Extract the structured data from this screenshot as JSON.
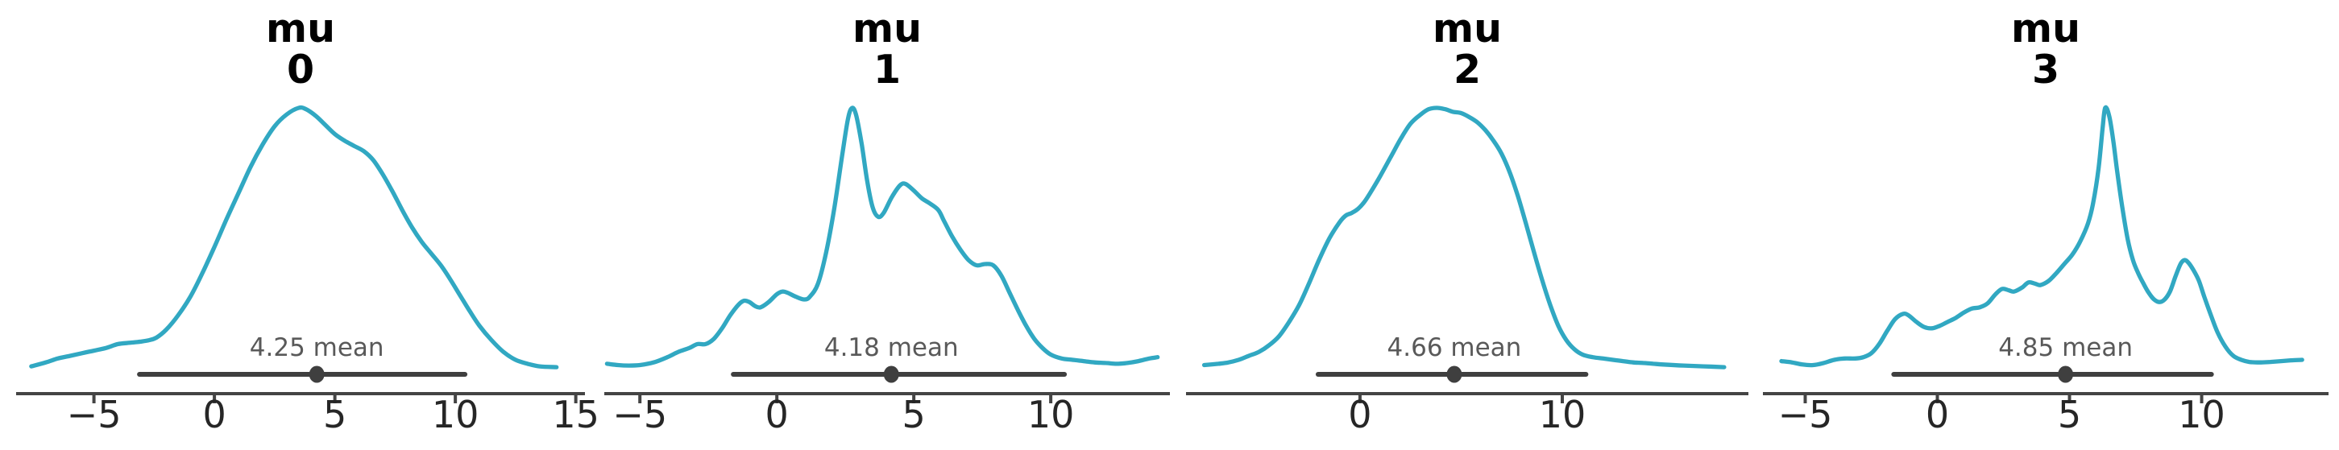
{
  "figure": {
    "background": "#ffffff",
    "curve_color": "#31a8c2",
    "hdi_color": "#3f3f3f",
    "mean_text_color": "#595959",
    "tick_label_color": "#262626",
    "axis_color": "#444444",
    "title_color": "#000000"
  },
  "chart_data": [
    {
      "type": "line",
      "title": "mu 0",
      "title_lines": [
        "mu",
        "0"
      ],
      "mean": 4.25,
      "mean_label": "4.25 mean",
      "hdi": [
        -3.11,
        10.4
      ],
      "x_range": [
        -8.23,
        15.38
      ],
      "x_ticks": [
        -5,
        0,
        5,
        10,
        15
      ],
      "x_tick_labels": [
        "−5",
        "0",
        "5",
        "10",
        "15"
      ],
      "x": [
        -7.6,
        -7,
        -6.5,
        -6,
        -5.5,
        -5,
        -4.5,
        -4,
        -3.5,
        -3,
        -2.7,
        -2.4,
        -2,
        -1.5,
        -1,
        -0.5,
        0,
        0.5,
        1,
        1.5,
        2,
        2.5,
        3,
        3.5,
        3.8,
        4.2,
        4.6,
        5,
        5.4,
        5.8,
        6.2,
        6.6,
        7,
        7.4,
        7.8,
        8.2,
        8.6,
        9,
        9.4,
        9.8,
        10.2,
        10.6,
        11,
        11.5,
        12,
        12.5,
        13,
        13.5,
        14.2
      ],
      "density": [
        0.015,
        0.03,
        0.045,
        0.055,
        0.065,
        0.075,
        0.085,
        0.1,
        0.105,
        0.11,
        0.115,
        0.125,
        0.155,
        0.21,
        0.28,
        0.37,
        0.47,
        0.575,
        0.675,
        0.775,
        0.86,
        0.93,
        0.975,
        1.0,
        0.995,
        0.97,
        0.935,
        0.9,
        0.875,
        0.855,
        0.835,
        0.8,
        0.745,
        0.68,
        0.61,
        0.545,
        0.49,
        0.445,
        0.4,
        0.345,
        0.285,
        0.225,
        0.17,
        0.115,
        0.07,
        0.04,
        0.025,
        0.015,
        0.012
      ]
    },
    {
      "type": "line",
      "title": "mu 1",
      "title_lines": [
        "mu",
        "1"
      ],
      "mean": 4.18,
      "mean_label": "4.18 mean",
      "hdi": [
        -1.59,
        10.5
      ],
      "x_range": [
        -6.3,
        14.35
      ],
      "x_ticks": [
        -5,
        0,
        5,
        10
      ],
      "x_tick_labels": [
        "−5",
        "0",
        "5",
        "10"
      ],
      "x": [
        -6.2,
        -5.8,
        -5.4,
        -5,
        -4.5,
        -4,
        -3.6,
        -3.2,
        -2.9,
        -2.6,
        -2.3,
        -2,
        -1.7,
        -1.4,
        -1.2,
        -1,
        -0.8,
        -0.6,
        -0.3,
        0,
        0.2,
        0.4,
        0.7,
        1,
        1.2,
        1.5,
        1.8,
        2.1,
        2.4,
        2.6,
        2.75,
        2.9,
        3.1,
        3.3,
        3.5,
        3.7,
        3.9,
        4.2,
        4.5,
        4.7,
        5,
        5.3,
        5.6,
        5.9,
        6.1,
        6.4,
        6.7,
        7,
        7.3,
        7.6,
        7.9,
        8.2,
        8.5,
        8.8,
        9.1,
        9.4,
        9.7,
        10,
        10.4,
        10.8,
        11.2,
        11.6,
        12,
        12.4,
        12.8,
        13.2,
        13.6,
        13.9
      ],
      "density": [
        0.025,
        0.02,
        0.018,
        0.02,
        0.03,
        0.05,
        0.07,
        0.085,
        0.1,
        0.1,
        0.12,
        0.16,
        0.21,
        0.25,
        0.265,
        0.26,
        0.245,
        0.24,
        0.26,
        0.29,
        0.3,
        0.295,
        0.28,
        0.27,
        0.28,
        0.33,
        0.45,
        0.62,
        0.83,
        0.96,
        1.0,
        0.97,
        0.86,
        0.72,
        0.62,
        0.585,
        0.6,
        0.66,
        0.705,
        0.71,
        0.685,
        0.655,
        0.635,
        0.61,
        0.57,
        0.51,
        0.46,
        0.42,
        0.4,
        0.405,
        0.4,
        0.36,
        0.295,
        0.23,
        0.17,
        0.12,
        0.085,
        0.06,
        0.045,
        0.04,
        0.035,
        0.03,
        0.028,
        0.025,
        0.028,
        0.035,
        0.045,
        0.05
      ]
    },
    {
      "type": "line",
      "title": "mu 2",
      "title_lines": [
        "mu",
        "2"
      ],
      "mean": 4.66,
      "mean_label": "4.66 mean",
      "hdi": [
        -2.07,
        11.17
      ],
      "x_range": [
        -8.6,
        19.2
      ],
      "x_ticks": [
        0,
        10
      ],
      "x_tick_labels": [
        "0",
        "10"
      ],
      "x": [
        -7.7,
        -7,
        -6.5,
        -6,
        -5.5,
        -5,
        -4.5,
        -4,
        -3.5,
        -3,
        -2.5,
        -2,
        -1.5,
        -1,
        -0.7,
        -0.4,
        -0.1,
        0.2,
        0.5,
        1,
        1.5,
        2,
        2.5,
        3,
        3.4,
        3.8,
        4.2,
        4.6,
        5,
        5.4,
        5.8,
        6.2,
        6.6,
        7,
        7.4,
        7.8,
        8.2,
        8.6,
        9,
        9.4,
        9.8,
        10.2,
        10.6,
        11,
        11.5,
        12,
        12.5,
        13,
        13.5,
        14,
        14.5,
        15,
        16,
        17,
        18
      ],
      "density": [
        0.02,
        0.025,
        0.03,
        0.04,
        0.055,
        0.07,
        0.095,
        0.13,
        0.185,
        0.25,
        0.335,
        0.425,
        0.505,
        0.565,
        0.59,
        0.6,
        0.615,
        0.64,
        0.675,
        0.74,
        0.81,
        0.88,
        0.94,
        0.975,
        0.995,
        1.0,
        0.995,
        0.985,
        0.98,
        0.965,
        0.945,
        0.915,
        0.875,
        0.825,
        0.755,
        0.665,
        0.56,
        0.45,
        0.345,
        0.25,
        0.17,
        0.115,
        0.08,
        0.06,
        0.05,
        0.045,
        0.04,
        0.035,
        0.03,
        0.028,
        0.025,
        0.022,
        0.018,
        0.015,
        0.012
      ]
    },
    {
      "type": "line",
      "title": "mu 3",
      "title_lines": [
        "mu",
        "3"
      ],
      "mean": 4.85,
      "mean_label": "4.85 mean",
      "hdi": [
        -1.65,
        10.37
      ],
      "x_range": [
        -6.6,
        14.8
      ],
      "x_ticks": [
        -5,
        0,
        5,
        10
      ],
      "x_tick_labels": [
        "−5",
        "0",
        "5",
        "10"
      ],
      "x": [
        -5.9,
        -5.5,
        -5.1,
        -4.7,
        -4.3,
        -3.9,
        -3.5,
        -3.1,
        -2.8,
        -2.5,
        -2.2,
        -1.9,
        -1.6,
        -1.3,
        -1.1,
        -0.8,
        -0.5,
        -0.2,
        0.1,
        0.4,
        0.7,
        1,
        1.3,
        1.6,
        1.9,
        2.2,
        2.45,
        2.7,
        2.9,
        3.2,
        3.45,
        3.7,
        3.9,
        4.2,
        4.5,
        4.8,
        5.1,
        5.4,
        5.7,
        5.9,
        6.1,
        6.25,
        6.35,
        6.5,
        6.65,
        6.8,
        7,
        7.2,
        7.4,
        7.6,
        7.8,
        8,
        8.2,
        8.4,
        8.6,
        8.8,
        9,
        9.2,
        9.35,
        9.5,
        9.7,
        9.9,
        10.1,
        10.35,
        10.6,
        10.9,
        11.2,
        11.5,
        11.8,
        12.2,
        12.6,
        13,
        13.4,
        13.8
      ],
      "density": [
        0.035,
        0.03,
        0.022,
        0.02,
        0.028,
        0.04,
        0.045,
        0.045,
        0.05,
        0.065,
        0.1,
        0.15,
        0.195,
        0.215,
        0.21,
        0.185,
        0.165,
        0.16,
        0.17,
        0.185,
        0.2,
        0.22,
        0.235,
        0.24,
        0.255,
        0.29,
        0.31,
        0.305,
        0.3,
        0.315,
        0.335,
        0.33,
        0.325,
        0.34,
        0.37,
        0.405,
        0.44,
        0.49,
        0.56,
        0.64,
        0.77,
        0.92,
        1.0,
        0.97,
        0.88,
        0.76,
        0.62,
        0.5,
        0.42,
        0.37,
        0.33,
        0.295,
        0.27,
        0.26,
        0.27,
        0.3,
        0.355,
        0.405,
        0.42,
        0.41,
        0.38,
        0.34,
        0.28,
        0.21,
        0.145,
        0.09,
        0.055,
        0.04,
        0.032,
        0.03,
        0.032,
        0.035,
        0.038,
        0.04
      ]
    }
  ]
}
